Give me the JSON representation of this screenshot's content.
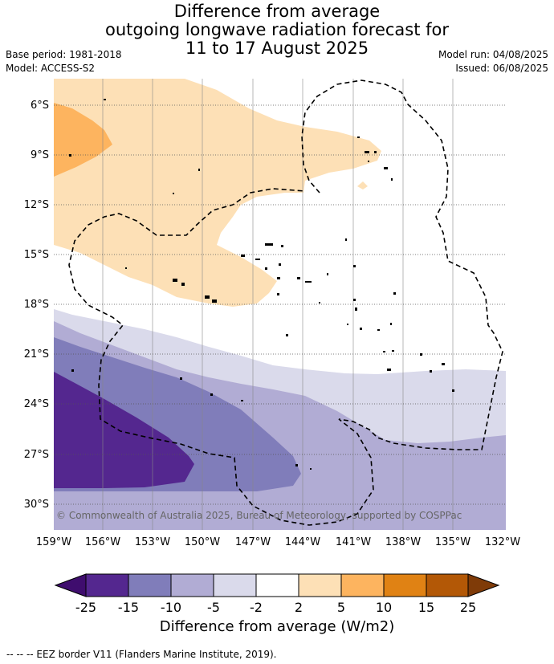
{
  "header": {
    "title_line1": "Difference from average",
    "title_line2": "outgoing longwave radiation forecast for",
    "title_line3": "11 to 17 August 2025",
    "base_period": "Base period: 1981-2018",
    "model": "Model: ACCESS-S2",
    "model_run": "Model run: 04/08/2025",
    "issued": "Issued: 06/08/2025"
  },
  "map": {
    "lat_labels": [
      "6°S",
      "9°S",
      "12°S",
      "15°S",
      "18°S",
      "21°S",
      "24°S",
      "27°S",
      "30°S"
    ],
    "lon_labels": [
      "159°W",
      "156°W",
      "153°W",
      "150°W",
      "147°W",
      "144°W",
      "141°W",
      "138°W",
      "135°W",
      "132°W"
    ],
    "copyright": "© Commonwealth of Australia 2025, Bureau of Meteorology, supported by COSPPac"
  },
  "colorbar": {
    "ticks": [
      "-25",
      "-15",
      "-10",
      "-5",
      "-2",
      "2",
      "5",
      "10",
      "15",
      "25"
    ],
    "colors": [
      "#3f0d6e",
      "#54278f",
      "#807dba",
      "#b1acd4",
      "#dadaeb",
      "#ffffff",
      "#fde0b6",
      "#fdb45f",
      "#e08214",
      "#b35806",
      "#7f3b08"
    ],
    "label": "Difference from average (W/m2)"
  },
  "footer": {
    "legend": "--  --  -- EEZ border V11 (Flanders Marine Institute, 2019)."
  }
}
